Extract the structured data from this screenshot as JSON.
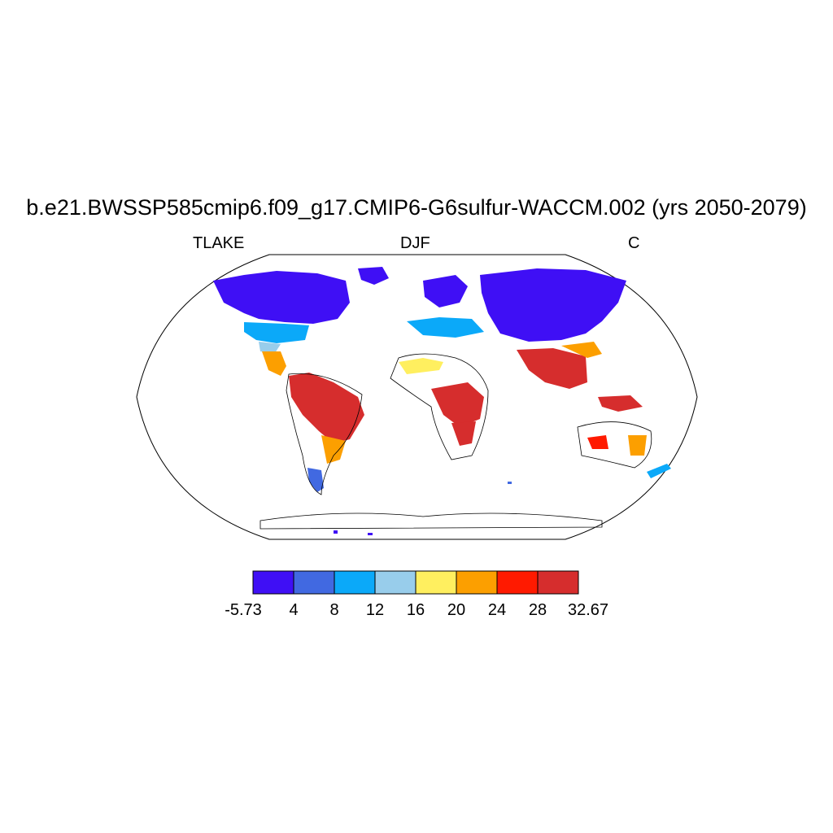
{
  "title": "b.e21.BWSSP585cmip6.f09_g17.CMIP6-G6sulfur-WACCM.002 (yrs 2050-2079)",
  "left_label": "TLAKE",
  "center_label": "DJF",
  "right_label": "C",
  "colorbar": {
    "labels": [
      "-5.73",
      "4",
      "8",
      "12",
      "16",
      "20",
      "24",
      "28",
      "32.67"
    ],
    "colors": [
      "#3f0ff5",
      "#4169e1",
      "#0ba9f9",
      "#98cdeb",
      "#ffef5f",
      "#fc9f00",
      "#ff1a00",
      "#d62d2d"
    ]
  },
  "map": {
    "projection": "robinson",
    "background": "#ffffff",
    "outline_color": "#000000"
  }
}
